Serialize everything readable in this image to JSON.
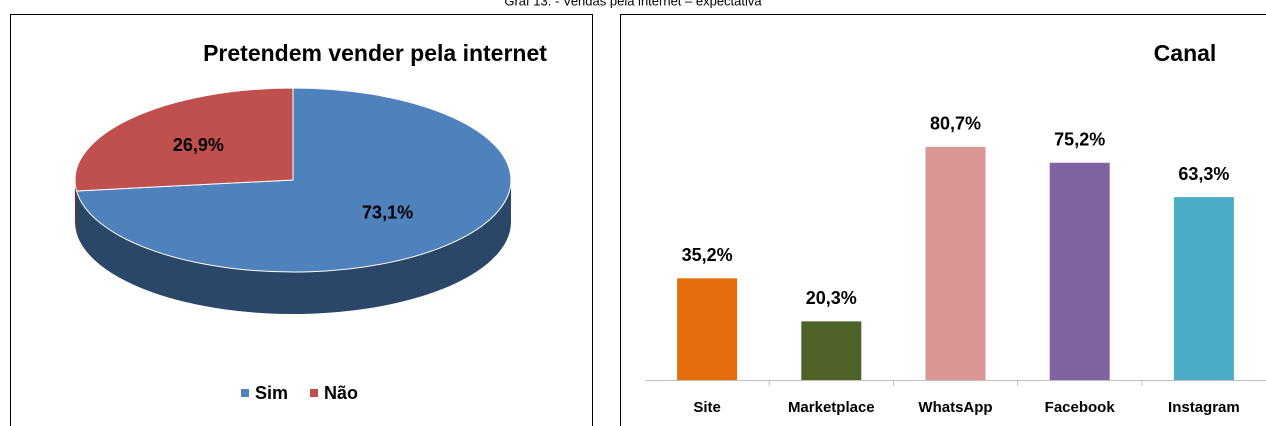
{
  "caption": "Graf 13. - Vendas pela internet – expectativa",
  "chart_data": [
    {
      "type": "pie",
      "title": "Pretendem vender pela internet",
      "categories": [
        "Sim",
        "Não"
      ],
      "values": [
        73.1,
        26.9
      ],
      "value_labels": [
        "73,1%",
        "26,9%"
      ],
      "colors": [
        "#4f81bd",
        "#c0504d"
      ],
      "legend": "bottom"
    },
    {
      "type": "bar",
      "title": "Canal",
      "categories": [
        "Site",
        "Marketplace",
        "WhatsApp",
        "Facebook",
        "Instagram"
      ],
      "values": [
        35.2,
        20.3,
        80.7,
        75.2,
        63.3
      ],
      "value_labels": [
        "35,2%",
        "20,3%",
        "80,7%",
        "75,2%",
        "63,3%"
      ],
      "colors": [
        "#e46c0a",
        "#4f6228",
        "#d99694",
        "#8064a2",
        "#4bacc6"
      ],
      "ylim": [
        0,
        90
      ]
    }
  ]
}
